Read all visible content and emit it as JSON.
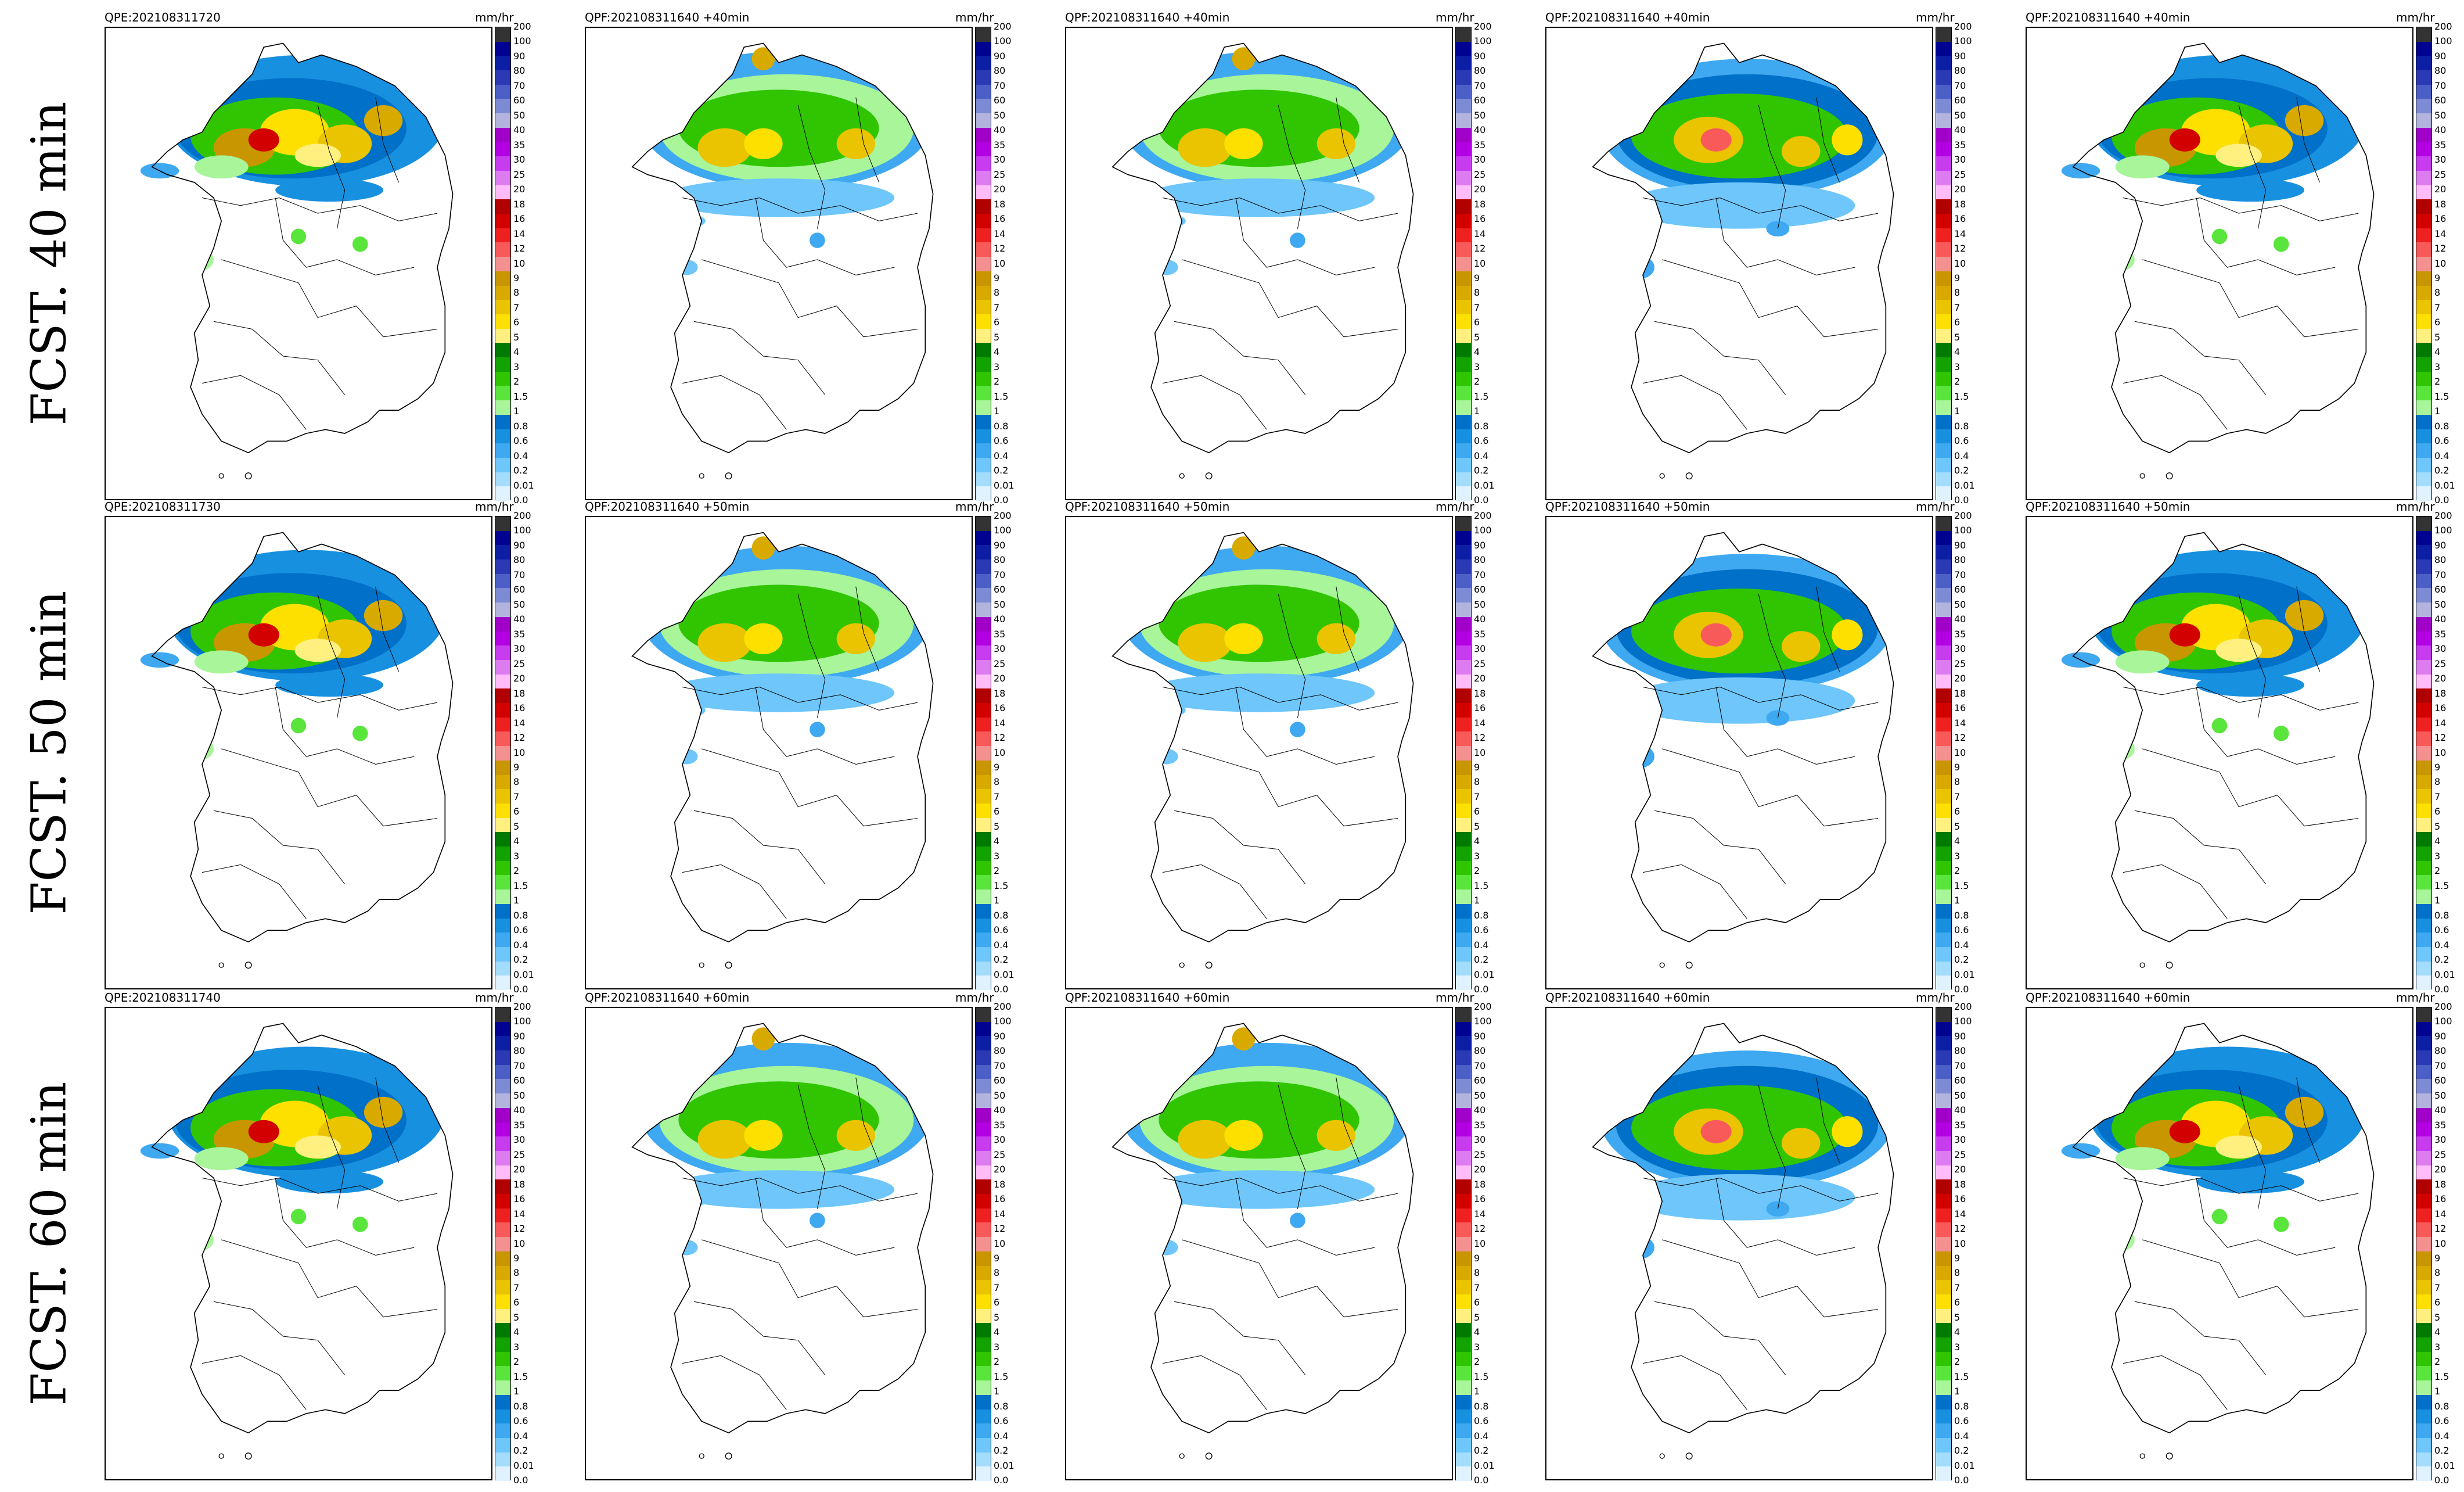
{
  "row_labels": [
    "FCST. 40 min",
    "FCST. 50 min",
    "FCST. 60 min"
  ],
  "unit_label": "mm/hr",
  "panel_titles": [
    [
      "QPE:202108311720",
      "QPF:202108311640 +40min",
      "QPF:202108311640 +40min",
      "QPF:202108311640 +40min",
      "QPF:202108311640 +40min"
    ],
    [
      "QPE:202108311730",
      "QPF:202108311640 +50min",
      "QPF:202108311640 +50min",
      "QPF:202108311640 +50min",
      "QPF:202108311640 +50min"
    ],
    [
      "QPE:202108311740",
      "QPF:202108311640 +60min",
      "QPF:202108311640 +60min",
      "QPF:202108311640 +60min",
      "QPF:202108311640 +60min"
    ]
  ],
  "colorbar": {
    "ticks": [
      "200",
      "100",
      "90",
      "80",
      "70",
      "60",
      "50",
      "40",
      "35",
      "30",
      "25",
      "20",
      "18",
      "16",
      "14",
      "12",
      "10",
      "9",
      "8",
      "7",
      "6",
      "5",
      "4",
      "3",
      "2",
      "1.5",
      "1",
      "0.8",
      "0.6",
      "0.4",
      "0.2",
      "0.01",
      "0.0"
    ],
    "colors": [
      "#333333",
      "#000390",
      "#0c1ea4",
      "#2b3ab4",
      "#4c5fc6",
      "#7d8bd4",
      "#b3b4de",
      "#a000c8",
      "#b300e2",
      "#c83cf0",
      "#dd7cf0",
      "#ffbcf8",
      "#b00000",
      "#d30000",
      "#ee2020",
      "#f85a5a",
      "#f39090",
      "#c89600",
      "#d8aa00",
      "#eac400",
      "#fde000",
      "#fff080",
      "#007a00",
      "#13a300",
      "#30c500",
      "#5ae53c",
      "#a8f59a",
      "#0070c8",
      "#1890e0",
      "#3ea8f0",
      "#6ec6fa",
      "#a4dcfc",
      "#e0f2fe"
    ]
  }
}
